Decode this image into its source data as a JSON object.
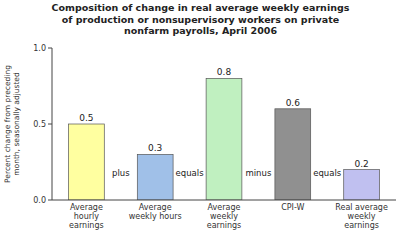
{
  "chart_data": {
    "type": "bar",
    "title": "Composition of change in real average weekly earnings\nof production or nonsupervisory workers on private\nnonfarm payrolls, April 2006",
    "ylabel": "Percent change from preceding\nmonth, seasonally adjusted",
    "categories": [
      "Average\nhourly\nearnings",
      "Average\nweekly hours",
      "Average\nweekly\nearnings",
      "CPI-W",
      "Real average\nweekly\nearnings"
    ],
    "values": [
      0.5,
      0.3,
      0.8,
      0.6,
      0.2
    ],
    "colors": [
      "#ffffa0",
      "#a0c0e8",
      "#c0f0c0",
      "#909090",
      "#c0c0f0"
    ],
    "annotations": [
      "plus",
      "equals",
      "minus",
      "equals"
    ],
    "ylim": [
      0,
      1.0
    ],
    "yticks": [
      {
        "value": 0,
        "label": "0.0"
      },
      0.5,
      {
        "value": 1.0,
        "label": "1.0"
      }
    ],
    "data_labels": true,
    "grid": false
  }
}
